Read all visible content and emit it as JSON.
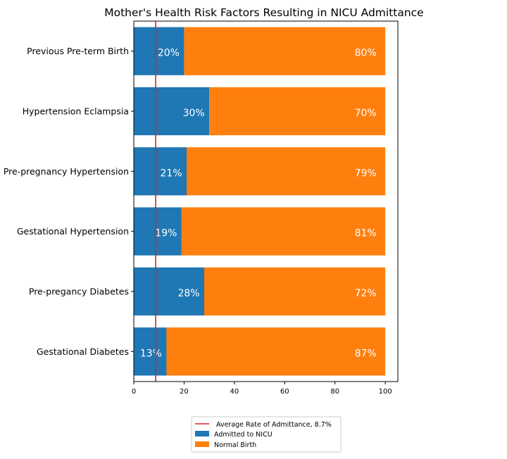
{
  "chart_data": {
    "type": "bar",
    "orientation": "horizontal",
    "stacked": true,
    "title": "Mother's Health Risk Factors Resulting in NICU Admittance",
    "xlabel": "",
    "ylabel": "",
    "xlim": [
      0,
      105
    ],
    "x_ticks": [
      0,
      20,
      40,
      60,
      80,
      100
    ],
    "grid": false,
    "legend_position": "bottom-center",
    "categories": [
      "Previous Pre-term Birth",
      "Hypertension Eclampsia",
      "Pre-pregnancy Hypertension",
      "Gestational Hypertension",
      "Pre-pregancy Diabetes",
      "Gestational Diabetes"
    ],
    "series": [
      {
        "name": "Admitted to NICU",
        "color": "#1f77b4",
        "values": [
          20,
          30,
          21,
          19,
          28,
          13
        ],
        "labels": [
          "20%",
          "30%",
          "21%",
          "19%",
          "28%",
          "13%"
        ]
      },
      {
        "name": "Normal Birth",
        "color": "#ff7f0e",
        "values": [
          80,
          70,
          79,
          81,
          72,
          87
        ],
        "labels": [
          "80%",
          "70%",
          "79%",
          "81%",
          "72%",
          "87%"
        ]
      }
    ],
    "reference_line": {
      "value": 8.7,
      "color": "#d62728",
      "label": "Average Rate of Admittance, 8.7%"
    }
  }
}
